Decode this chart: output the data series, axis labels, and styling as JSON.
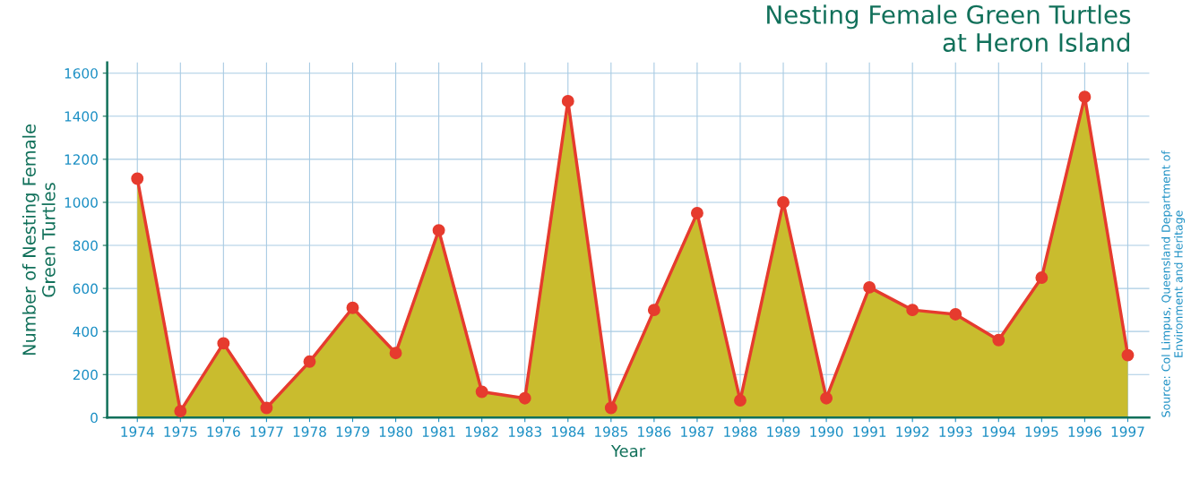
{
  "chart_data": {
    "type": "area",
    "title": "Nesting Female Green Turtles\nat Heron Island",
    "xlabel": "Year",
    "ylabel": "Number of Nesting Female\nGreen Turtles",
    "annotations": [
      "Source: Col Limpus, Queensland Department of\nEnvironment and Heritage"
    ],
    "categories": [
      "1974",
      "1975",
      "1976",
      "1977",
      "1978",
      "1979",
      "1980",
      "1981",
      "1982",
      "1983",
      "1984",
      "1985",
      "1986",
      "1987",
      "1988",
      "1989",
      "1990",
      "1991",
      "1992",
      "1993",
      "1994",
      "1995",
      "1996",
      "1997"
    ],
    "series": [
      {
        "color": "#c9bc2e",
        "values": [
          1110,
          30,
          345,
          45,
          260,
          510,
          300,
          870,
          120,
          90,
          1470,
          45,
          500,
          950,
          80,
          1000,
          90,
          605,
          500,
          480,
          360,
          650,
          1490,
          290
        ]
      }
    ],
    "ylim": [
      0,
      1650
    ],
    "yticks": [
      0,
      200,
      400,
      600,
      800,
      1000,
      1200,
      1400,
      1600
    ],
    "grid": true,
    "marker": "circle",
    "line_style": "solid"
  }
}
